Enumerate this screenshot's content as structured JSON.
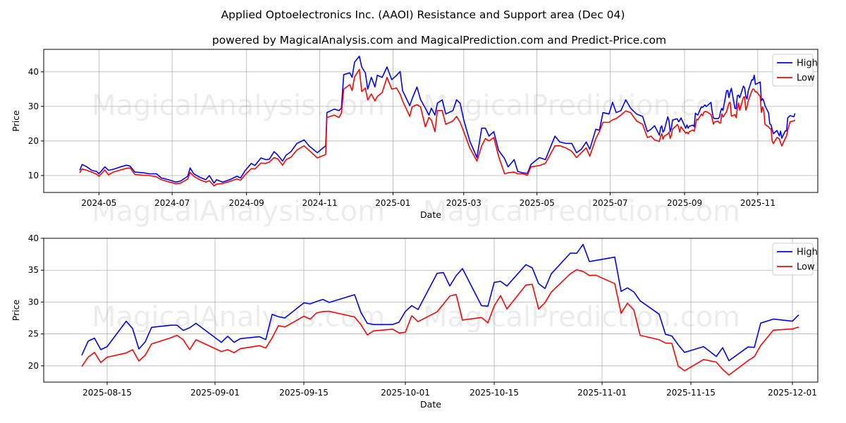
{
  "title": "Applied Optoelectronics Inc. (AAOI) Resistance and Support area (Dec 04)",
  "subtitle": "powered by MagicalAnalysis.com and MagicalPrediction.com and Predict-Price.com",
  "watermarks": [
    "MagicalAnalysis.com",
    "MagicalPrediction.com"
  ],
  "colors": {
    "high": "#0000ff",
    "low": "#ff0000"
  },
  "chart_data": [
    {
      "type": "line",
      "title": "",
      "xlabel": "Date",
      "ylabel": "Price",
      "xlim": [
        "2024-03-16",
        "2025-12-21"
      ],
      "ylim": [
        5.1,
        46.5
      ],
      "yticks": [
        10,
        20,
        30,
        40
      ],
      "xticks": [
        "2024-05-01",
        "2024-07-01",
        "2024-09-01",
        "2024-11-01",
        "2025-01-01",
        "2025-03-01",
        "2025-05-01",
        "2025-07-01",
        "2025-09-01",
        "2025-11-01"
      ],
      "xtick_labels": [
        "2024-05",
        "2024-07",
        "2024-09",
        "2024-11",
        "2025-01",
        "2025-03",
        "2025-05",
        "2025-07",
        "2025-09",
        "2025-11"
      ],
      "grid": true,
      "legend": "top-right",
      "continues_with_chart": 1,
      "x": [
        "2024-04-15",
        "2024-04-17",
        "2024-04-21",
        "2024-04-25",
        "2024-04-29",
        "2024-05-01",
        "2024-05-06",
        "2024-05-09",
        "2024-05-13",
        "2024-05-19",
        "2024-05-24",
        "2024-05-27",
        "2024-05-31",
        "2024-06-07",
        "2024-06-12",
        "2024-06-18",
        "2024-06-22",
        "2024-06-28",
        "2024-07-04",
        "2024-07-08",
        "2024-07-14",
        "2024-07-16",
        "2024-07-19",
        "2024-07-24",
        "2024-07-29",
        "2024-08-01",
        "2024-08-05",
        "2024-08-07",
        "2024-08-12",
        "2024-08-18",
        "2024-08-24",
        "2024-08-27",
        "2024-08-31",
        "2024-09-05",
        "2024-09-08",
        "2024-09-13",
        "2024-09-17",
        "2024-09-20",
        "2024-09-24",
        "2024-09-27",
        "2024-10-01",
        "2024-10-04",
        "2024-10-08",
        "2024-10-13",
        "2024-10-19",
        "2024-10-23",
        "2024-10-30",
        "2024-11-06",
        "2024-11-07",
        "2024-11-13",
        "2024-11-17",
        "2024-11-19",
        "2024-11-21",
        "2024-11-26",
        "2024-11-28",
        "2024-11-30",
        "2024-12-04",
        "2024-12-06",
        "2024-12-09",
        "2024-12-11",
        "2024-12-14",
        "2024-12-17",
        "2024-12-19",
        "2024-12-23",
        "2024-12-27",
        "2024-12-31",
        "2025-01-04",
        "2025-01-07",
        "2025-01-09",
        "2025-01-15",
        "2025-01-17",
        "2025-01-21",
        "2025-01-24",
        "2025-01-28",
        "2025-01-31",
        "2025-02-02",
        "2025-02-05",
        "2025-02-07",
        "2025-02-11",
        "2025-02-14",
        "2025-02-20",
        "2025-02-23",
        "2025-02-26",
        "2025-03-01",
        "2025-03-06",
        "2025-03-12",
        "2025-03-16",
        "2025-03-19",
        "2025-03-22",
        "2025-03-26",
        "2025-03-30",
        "2025-04-04",
        "2025-04-07",
        "2025-04-12",
        "2025-04-15",
        "2025-04-19",
        "2025-04-23",
        "2025-04-26",
        "2025-05-03",
        "2025-05-08",
        "2025-05-16",
        "2025-05-20",
        "2025-05-25",
        "2025-05-30",
        "2025-06-03",
        "2025-06-07",
        "2025-06-11",
        "2025-06-14",
        "2025-06-19",
        "2025-06-22",
        "2025-06-25",
        "2025-06-30",
        "2025-07-03",
        "2025-07-06",
        "2025-07-10",
        "2025-07-14",
        "2025-07-18",
        "2025-07-23",
        "2025-07-28",
        "2025-08-01",
        "2025-08-04",
        "2025-08-07"
      ],
      "series": [
        {
          "name": "High",
          "values": [
            11.5,
            13.2,
            12.5,
            11.5,
            11.2,
            10.5,
            12.5,
            11.5,
            11.8,
            12.5,
            13.0,
            12.7,
            11.0,
            10.8,
            10.5,
            10.5,
            9.3,
            8.8,
            8.1,
            8.4,
            9.8,
            12.2,
            10.5,
            9.5,
            8.8,
            10.0,
            7.8,
            8.8,
            8.1,
            8.8,
            9.8,
            9.3,
            11.5,
            13.5,
            12.9,
            15.1,
            14.6,
            14.7,
            16.9,
            15.9,
            14.2,
            15.9,
            16.9,
            19.3,
            20.3,
            18.6,
            16.6,
            18.6,
            28.2,
            29.2,
            28.8,
            29.5,
            39.2,
            39.7,
            38.4,
            42.8,
            44.5,
            41.4,
            39.7,
            35.0,
            38.4,
            35.6,
            39.0,
            38.4,
            41.4,
            37.7,
            39.0,
            40.1,
            34.6,
            30.2,
            32.2,
            35.6,
            32.0,
            29.5,
            27.5,
            29.5,
            27.5,
            30.9,
            31.9,
            27.8,
            28.8,
            31.9,
            30.9,
            26.1,
            20.0,
            15.2,
            23.7,
            23.7,
            21.4,
            22.7,
            17.3,
            14.9,
            12.5,
            14.6,
            11.2,
            10.8,
            10.6,
            13.2,
            15.2,
            14.6,
            21.4,
            19.7,
            19.3,
            19.3,
            16.6,
            17.6,
            19.7,
            17.6,
            23.4,
            23.1,
            28.2,
            27.8,
            31.2,
            28.2,
            28.8,
            31.9,
            29.5,
            27.8,
            27.1,
            22.7,
            23.4,
            24.4
          ]
        },
        {
          "name": "Low",
          "values": [
            10.8,
            11.9,
            11.5,
            11.0,
            10.4,
            9.8,
            11.6,
            10.2,
            11.0,
            11.6,
            12.1,
            12.2,
            10.3,
            10.1,
            10.0,
            9.6,
            8.8,
            8.2,
            7.6,
            7.8,
            9.0,
            10.9,
            9.8,
            8.8,
            8.1,
            8.5,
            7.0,
            7.5,
            7.7,
            8.3,
            9.0,
            8.6,
            10.3,
            12.0,
            11.9,
            13.6,
            13.5,
            13.9,
            15.2,
            14.8,
            13.0,
            14.6,
            15.3,
            17.4,
            18.6,
            17.3,
            15.1,
            16.1,
            26.8,
            27.5,
            26.8,
            28.0,
            35.0,
            36.3,
            34.6,
            38.5,
            40.7,
            34.3,
            35.3,
            31.9,
            33.6,
            31.6,
            32.9,
            34.0,
            38.4,
            35.0,
            35.3,
            33.5,
            31.6,
            27.1,
            29.9,
            30.5,
            29.9,
            24.1,
            26.8,
            26.0,
            22.7,
            28.8,
            28.8,
            24.8,
            25.8,
            27.1,
            25.4,
            22.7,
            18.0,
            14.2,
            18.6,
            20.7,
            20.0,
            21.0,
            15.6,
            10.5,
            10.8,
            11.0,
            10.5,
            10.5,
            10.1,
            12.5,
            12.9,
            13.5,
            18.6,
            18.6,
            18.0,
            17.0,
            15.2,
            16.6,
            18.0,
            15.6,
            20.7,
            22.7,
            25.4,
            25.4,
            26.1,
            26.5,
            27.5,
            28.7,
            28.2,
            25.8,
            24.8,
            21.0,
            21.4,
            20.3
          ]
        }
      ]
    },
    {
      "type": "line",
      "title": "",
      "xlabel": "Date",
      "ylabel": "Price",
      "xlim": [
        "2025-08-05",
        "2025-12-05"
      ],
      "ylim": [
        17.45,
        40
      ],
      "yticks": [
        20,
        25,
        30,
        35,
        40
      ],
      "xticks": [
        "2025-08-15",
        "2025-09-01",
        "2025-09-15",
        "2025-10-01",
        "2025-10-15",
        "2025-11-01",
        "2025-11-15",
        "2025-12-01"
      ],
      "xtick_labels": [
        "2025-08-15",
        "2025-09-01",
        "2025-09-15",
        "2025-10-01",
        "2025-10-15",
        "2025-11-01",
        "2025-11-15",
        "2025-12-01"
      ],
      "grid": true,
      "legend": "top-right",
      "x": [
        "2025-08-11",
        "2025-08-12",
        "2025-08-13",
        "2025-08-14",
        "2025-08-15",
        "2025-08-18",
        "2025-08-19",
        "2025-08-20",
        "2025-08-21",
        "2025-08-22",
        "2025-08-25",
        "2025-08-26",
        "2025-08-27",
        "2025-08-28",
        "2025-08-29",
        "2025-09-02",
        "2025-09-03",
        "2025-09-04",
        "2025-09-05",
        "2025-09-08",
        "2025-09-09",
        "2025-09-10",
        "2025-09-11",
        "2025-09-12",
        "2025-09-15",
        "2025-09-16",
        "2025-09-17",
        "2025-09-18",
        "2025-09-19",
        "2025-09-23",
        "2025-09-24",
        "2025-09-25",
        "2025-09-26",
        "2025-09-29",
        "2025-09-30",
        "2025-10-01",
        "2025-10-02",
        "2025-10-03",
        "2025-10-06",
        "2025-10-07",
        "2025-10-08",
        "2025-10-09",
        "2025-10-10",
        "2025-10-13",
        "2025-10-14",
        "2025-10-15",
        "2025-10-16",
        "2025-10-17",
        "2025-10-20",
        "2025-10-21",
        "2025-10-22",
        "2025-10-23",
        "2025-10-24",
        "2025-10-27",
        "2025-10-28",
        "2025-10-29",
        "2025-10-30",
        "2025-10-31",
        "2025-11-03",
        "2025-11-04",
        "2025-11-05",
        "2025-11-06",
        "2025-11-07",
        "2025-11-10",
        "2025-11-11",
        "2025-11-12",
        "2025-11-13",
        "2025-11-14",
        "2025-11-17",
        "2025-11-19",
        "2025-11-20",
        "2025-11-21",
        "2025-11-24",
        "2025-11-25",
        "2025-11-26",
        "2025-11-28",
        "2025-12-01",
        "2025-12-02"
      ],
      "series": [
        {
          "name": "High",
          "values": [
            21.66,
            23.87,
            24.35,
            22.54,
            23.02,
            27.0,
            25.86,
            22.65,
            23.76,
            26.04,
            26.37,
            26.37,
            25.56,
            25.97,
            26.67,
            23.68,
            24.64,
            23.7,
            24.27,
            24.57,
            24.12,
            28.07,
            27.7,
            27.51,
            29.87,
            29.72,
            30.1,
            30.42,
            29.94,
            31.16,
            28.36,
            26.67,
            26.48,
            26.48,
            26.85,
            28.54,
            29.43,
            28.84,
            34.51,
            34.62,
            32.52,
            34.14,
            35.25,
            29.43,
            29.36,
            33.08,
            33.26,
            32.52,
            35.88,
            35.36,
            32.89,
            32.12,
            34.44,
            37.68,
            37.64,
            39.04,
            36.35,
            36.53,
            37.05,
            31.68,
            32.23,
            31.6,
            30.2,
            28.1,
            24.94,
            24.68,
            23.31,
            22.1,
            23.02,
            21.47,
            22.84,
            20.81,
            22.95,
            22.9,
            26.7,
            27.33,
            27.0,
            27.99
          ]
        },
        {
          "name": "Low",
          "values": [
            19.89,
            21.36,
            22.1,
            20.52,
            21.36,
            22.02,
            22.54,
            20.77,
            21.66,
            23.43,
            24.38,
            24.79,
            24.09,
            22.54,
            24.09,
            22.25,
            22.54,
            22.06,
            22.69,
            23.17,
            22.8,
            24.38,
            26.3,
            26.08,
            27.77,
            27.33,
            28.29,
            28.51,
            28.55,
            27.66,
            26.45,
            24.86,
            25.49,
            25.75,
            25.16,
            25.27,
            27.85,
            26.93,
            28.47,
            29.7,
            30.94,
            31.2,
            27.18,
            27.59,
            26.74,
            29.39,
            31.01,
            28.91,
            32.67,
            32.78,
            28.91,
            29.91,
            31.57,
            34.44,
            35.06,
            34.81,
            34.18,
            34.22,
            32.89,
            28.25,
            29.83,
            28.77,
            24.79,
            24.09,
            23.57,
            23.53,
            19.96,
            19.23,
            21.0,
            20.59,
            19.45,
            18.56,
            20.81,
            21.44,
            23.2,
            25.6,
            25.78,
            26.08
          ]
        }
      ]
    }
  ]
}
